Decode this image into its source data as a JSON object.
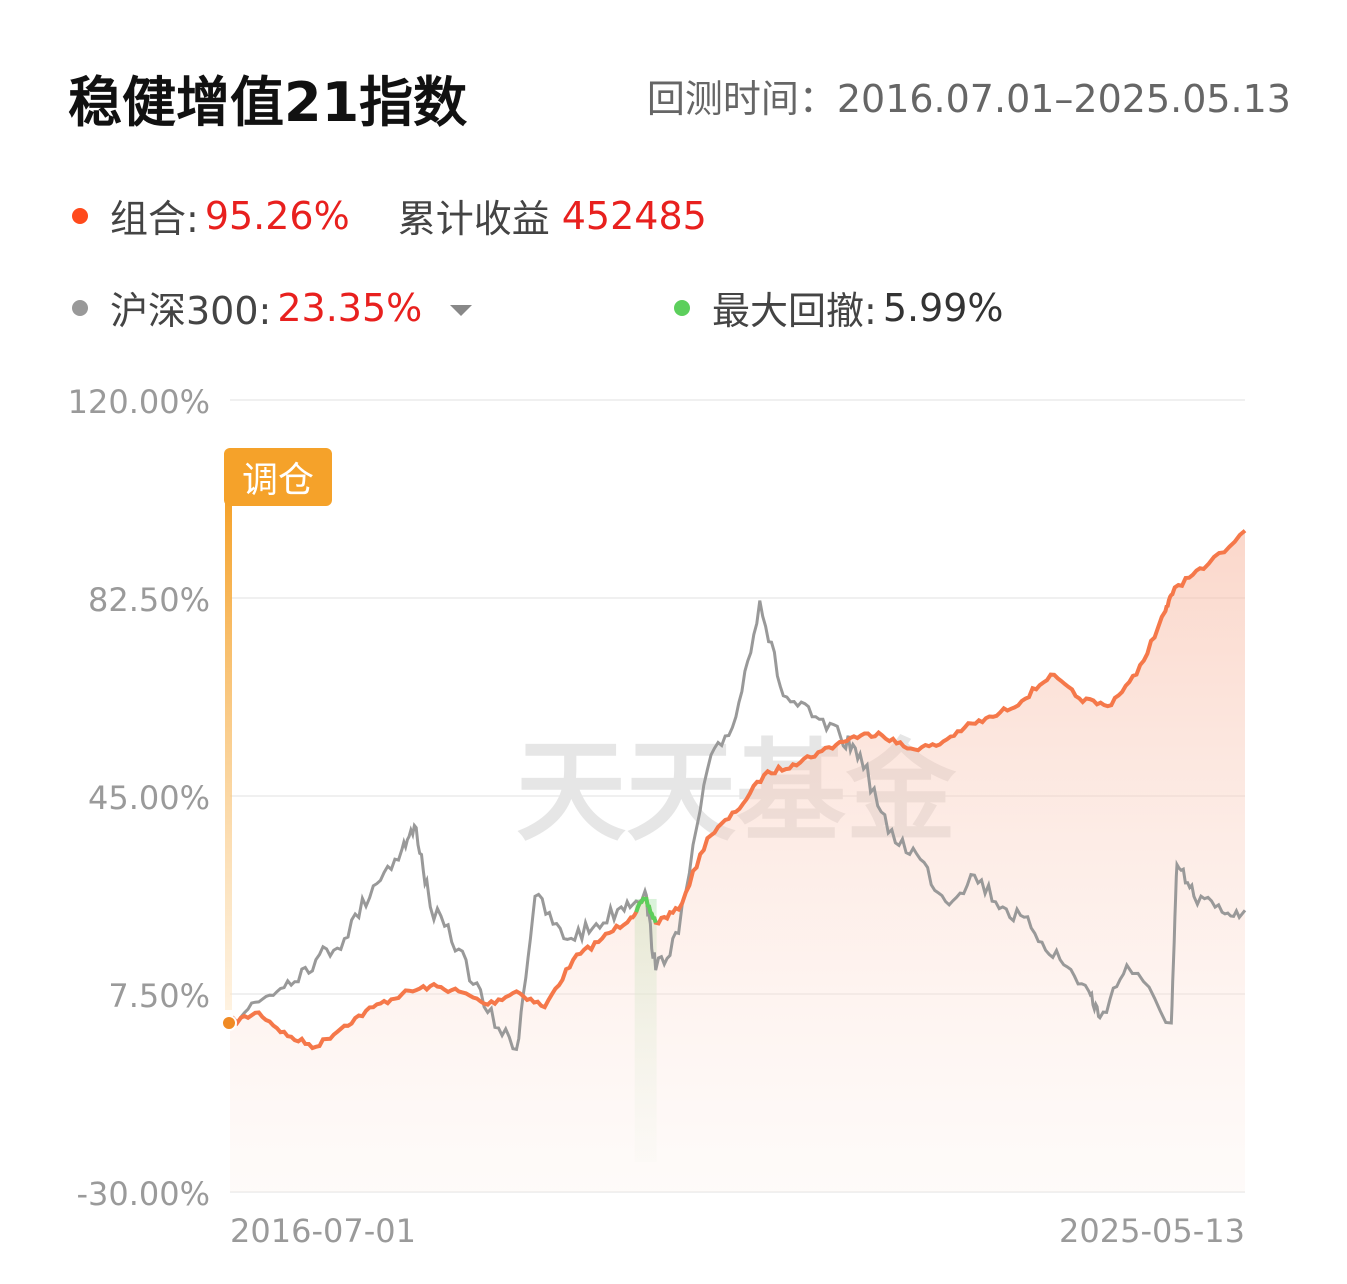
{
  "header": {
    "title": "稳健增值21指数",
    "range": "回测时间：2016.07.01–2025.05.13"
  },
  "legend": {
    "portfolio_label": "组合:",
    "portfolio_value": "95.26%",
    "cumulative_label": "累计收益",
    "cumulative_value": "452485",
    "benchmark_label": "沪深300:",
    "benchmark_value": "23.35%",
    "drawdown_label": "最大回撤:",
    "drawdown_value": "5.99%"
  },
  "badge": {
    "label": "调仓"
  },
  "watermark": "天天基金",
  "colors": {
    "portfolio": "#f5784a",
    "benchmark": "#999999",
    "drawdown": "#5ccf5c",
    "badge": "#f5a22a",
    "value_red": "#e8201e"
  },
  "chart_data": {
    "type": "line",
    "x_range": [
      "2016-07-01",
      "2025-05-13"
    ],
    "x_tick_labels": [
      "2016-07-01",
      "2025-05-13"
    ],
    "y_tick_labels": [
      "120.00%",
      "82.50%",
      "45.00%",
      "7.50%",
      "-30.00%"
    ],
    "ylim": [
      -30,
      120
    ],
    "grid": true,
    "series": [
      {
        "name": "组合",
        "x": [
          "2016-07-01",
          "2016-10-01",
          "2017-01-01",
          "2017-04-01",
          "2017-07-01",
          "2017-10-01",
          "2018-01-01",
          "2018-04-01",
          "2018-07-01",
          "2018-10-01",
          "2019-01-01",
          "2019-04-01",
          "2019-07-01",
          "2019-10-01",
          "2020-01-01",
          "2020-02-15",
          "2020-03-20",
          "2020-06-01",
          "2020-09-01",
          "2020-12-01",
          "2021-03-01",
          "2021-06-01",
          "2021-09-01",
          "2021-12-01",
          "2022-03-01",
          "2022-06-01",
          "2022-09-01",
          "2022-12-01",
          "2023-03-01",
          "2023-06-01",
          "2023-09-01",
          "2023-12-01",
          "2024-03-01",
          "2024-06-01",
          "2024-09-01",
          "2024-10-01",
          "2025-01-01",
          "2025-05-13"
        ],
        "values": [
          2.0,
          4.0,
          -0.5,
          -2.5,
          1.5,
          5.0,
          7.5,
          9.0,
          8.0,
          5.5,
          8.0,
          5.0,
          14.0,
          18.0,
          22.0,
          25.5,
          21.0,
          23.5,
          37.0,
          42.0,
          49.0,
          51.0,
          53.5,
          56.0,
          57.0,
          54.0,
          54.5,
          58.0,
          60.0,
          63.0,
          68.0,
          63.5,
          62.0,
          68.0,
          80.0,
          84.5,
          88.0,
          95.26
        ]
      },
      {
        "name": "沪深300",
        "x": [
          "2016-07-01",
          "2016-10-01",
          "2017-01-01",
          "2017-04-01",
          "2017-07-01",
          "2017-10-01",
          "2018-01-01",
          "2018-02-15",
          "2018-04-01",
          "2018-07-01",
          "2018-10-01",
          "2019-01-01",
          "2019-03-01",
          "2019-06-01",
          "2019-09-01",
          "2019-12-01",
          "2020-02-15",
          "2020-03-20",
          "2020-06-01",
          "2020-09-01",
          "2020-12-01",
          "2021-02-15",
          "2021-05-01",
          "2021-08-01",
          "2021-11-01",
          "2022-01-01",
          "2022-04-01",
          "2022-07-01",
          "2022-10-01",
          "2023-01-01",
          "2023-04-01",
          "2023-07-01",
          "2023-10-01",
          "2024-01-01",
          "2024-02-05",
          "2024-05-01",
          "2024-09-20",
          "2024-10-08",
          "2024-12-01",
          "2025-03-01",
          "2025-05-13"
        ],
        "values": [
          3.0,
          6.0,
          10.0,
          14.0,
          18.0,
          28.0,
          35.0,
          39.0,
          24.0,
          16.0,
          4.0,
          -3.0,
          26.0,
          18.0,
          20.0,
          24.0,
          27.0,
          12.0,
          19.0,
          50.0,
          60.0,
          82.0,
          64.0,
          60.0,
          56.0,
          53.0,
          38.0,
          34.0,
          25.0,
          30.0,
          24.0,
          20.0,
          14.0,
          8.0,
          3.0,
          13.0,
          2.0,
          32.0,
          26.0,
          23.0,
          23.35
        ]
      }
    ],
    "max_drawdown_period": [
      "2020-01-13",
      "2020-03-23"
    ]
  }
}
